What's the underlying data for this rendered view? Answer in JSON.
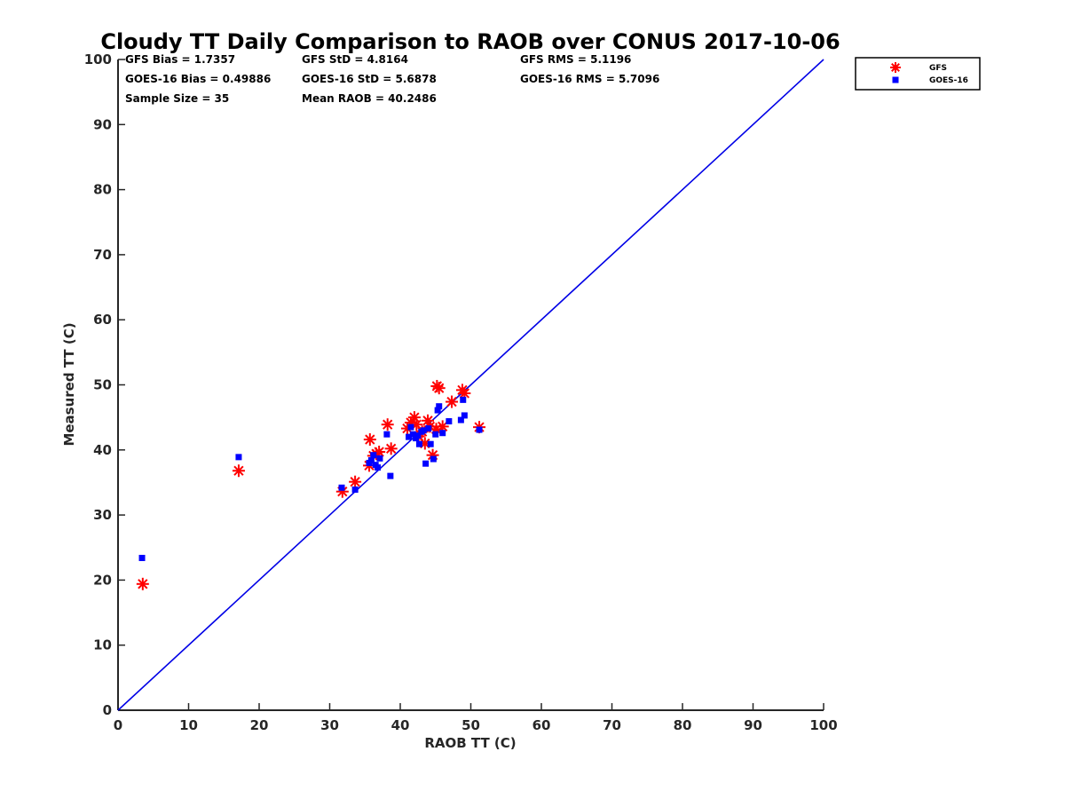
{
  "chart_data": {
    "type": "scatter",
    "title": "Cloudy TT Daily Comparison to RAOB over CONUS 2017-10-06",
    "xlabel": "RAOB TT (C)",
    "ylabel": "Measured TT (C)",
    "xlim": [
      0,
      100
    ],
    "ylim": [
      0,
      100
    ],
    "xticks": [
      "0",
      "10",
      "20",
      "30",
      "40",
      "50",
      "60",
      "70",
      "80",
      "90",
      "100"
    ],
    "yticks": [
      "0",
      "10",
      "20",
      "30",
      "40",
      "50",
      "60",
      "70",
      "80",
      "90",
      "100"
    ],
    "grid": false,
    "legend_position": "outside-top-right",
    "reference_line": {
      "x": [
        0,
        100
      ],
      "y": [
        0,
        100
      ],
      "color": "#0000e6"
    },
    "stats": [
      "GFS Bias = 1.7357",
      "GFS StD = 4.8164",
      "GFS RMS = 5.1196",
      "GOES-16 Bias = 0.49886",
      "GOES-16 StD = 5.6878",
      "GOES-16 RMS = 5.7096",
      "Sample Size = 35",
      "Mean RAOB = 40.2486"
    ],
    "series": [
      {
        "name": "GFS",
        "marker": "asterisk",
        "color": "#ff0000",
        "points": [
          [
            3.5,
            19.4
          ],
          [
            17.1,
            36.8
          ],
          [
            31.8,
            33.6
          ],
          [
            33.6,
            35.1
          ],
          [
            35.7,
            41.6
          ],
          [
            35.6,
            37.6
          ],
          [
            36.2,
            39.1
          ],
          [
            36.6,
            39.4
          ],
          [
            37.0,
            39.7
          ],
          [
            38.2,
            43.9
          ],
          [
            38.7,
            40.2
          ],
          [
            41.0,
            43.3
          ],
          [
            41.5,
            44.2
          ],
          [
            42.0,
            45.0
          ],
          [
            42.3,
            43.9
          ],
          [
            42.6,
            42.1
          ],
          [
            43.1,
            42.8
          ],
          [
            43.5,
            41.0
          ],
          [
            43.9,
            44.5
          ],
          [
            44.2,
            43.6
          ],
          [
            44.6,
            39.2
          ],
          [
            45.1,
            43.2
          ],
          [
            45.2,
            49.8
          ],
          [
            45.5,
            49.5
          ],
          [
            46.0,
            43.6
          ],
          [
            47.3,
            47.4
          ],
          [
            48.8,
            49.2
          ],
          [
            49.1,
            48.7
          ],
          [
            51.2,
            43.5
          ]
        ]
      },
      {
        "name": "GOES-16",
        "marker": "square",
        "color": "#0000ff",
        "points": [
          [
            3.4,
            23.4
          ],
          [
            17.1,
            38.9
          ],
          [
            31.7,
            34.2
          ],
          [
            33.6,
            33.9
          ],
          [
            35.6,
            38.0
          ],
          [
            35.9,
            38.4
          ],
          [
            36.2,
            39.2
          ],
          [
            36.5,
            37.7
          ],
          [
            36.8,
            37.3
          ],
          [
            37.1,
            38.7
          ],
          [
            38.1,
            42.4
          ],
          [
            38.6,
            36.0
          ],
          [
            41.2,
            42.0
          ],
          [
            41.5,
            43.5
          ],
          [
            41.8,
            42.4
          ],
          [
            42.2,
            41.8
          ],
          [
            42.5,
            42.2
          ],
          [
            42.7,
            40.9
          ],
          [
            43.0,
            42.8
          ],
          [
            43.3,
            43.0
          ],
          [
            43.6,
            37.9
          ],
          [
            44.0,
            43.3
          ],
          [
            44.3,
            40.9
          ],
          [
            44.7,
            38.6
          ],
          [
            45.0,
            42.4
          ],
          [
            45.3,
            46.1
          ],
          [
            45.5,
            46.7
          ],
          [
            46.0,
            42.6
          ],
          [
            46.9,
            44.4
          ],
          [
            48.6,
            44.6
          ],
          [
            48.9,
            47.7
          ],
          [
            49.1,
            45.3
          ],
          [
            51.2,
            43.1
          ]
        ]
      }
    ]
  }
}
